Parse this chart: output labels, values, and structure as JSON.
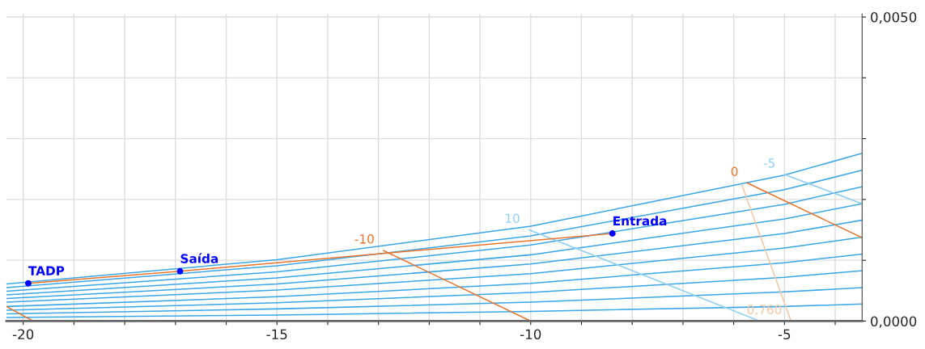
{
  "chart_data": {
    "type": "line",
    "xlim": [
      -20.33,
      -3.47
    ],
    "ylim": [
      0,
      0.00505
    ],
    "xticks": [
      {
        "value": -20,
        "label": "-20"
      },
      {
        "value": -19,
        "label": null
      },
      {
        "value": -18,
        "label": null
      },
      {
        "value": -17,
        "label": null
      },
      {
        "value": -16,
        "label": null
      },
      {
        "value": -15,
        "label": "-15"
      },
      {
        "value": -14,
        "label": null
      },
      {
        "value": -13,
        "label": null
      },
      {
        "value": -12,
        "label": null
      },
      {
        "value": -11,
        "label": null
      },
      {
        "value": -10,
        "label": "-10"
      },
      {
        "value": -9,
        "label": null
      },
      {
        "value": -8,
        "label": null
      },
      {
        "value": -7,
        "label": null
      },
      {
        "value": -6,
        "label": null
      },
      {
        "value": -5,
        "label": "-5"
      },
      {
        "value": -4,
        "label": null
      }
    ],
    "yticks": [
      {
        "value": 0,
        "label": "0,0000"
      },
      {
        "value": 0.001,
        "label": null
      },
      {
        "value": 0.002,
        "label": null
      },
      {
        "value": 0.003,
        "label": null
      },
      {
        "value": 0.004,
        "label": null
      },
      {
        "value": 0.005,
        "label": "0,0050"
      }
    ],
    "grid": true,
    "series": [
      {
        "color": "#3aa6e6",
        "x": [
          -20.33,
          -15,
          -10,
          -5,
          -3.47
        ],
        "values": [
          6e-05,
          0.0001,
          0.00016,
          0.00024,
          0.00028
        ]
      },
      {
        "color": "#3aa6e6",
        "x": [
          -20.33,
          -15,
          -10,
          -5,
          -3.47
        ],
        "values": [
          0.00012,
          0.0002,
          0.00031,
          0.00048,
          0.00055
        ]
      },
      {
        "color": "#3aa6e6",
        "x": [
          -20.33,
          -15,
          -10,
          -5,
          -3.47
        ],
        "values": [
          0.00018,
          0.0003,
          0.00047,
          0.00072,
          0.00083
        ]
      },
      {
        "color": "#3aa6e6",
        "x": [
          -20.33,
          -15,
          -10,
          -5,
          -3.47
        ],
        "values": [
          0.00024,
          0.0004,
          0.00062,
          0.00096,
          0.0011
        ]
      },
      {
        "color": "#3aa6e6",
        "x": [
          -20.33,
          -15,
          -10,
          -5,
          -3.47
        ],
        "values": [
          0.00031,
          0.00051,
          0.00078,
          0.0012,
          0.00138
        ]
      },
      {
        "color": "#3aa6e6",
        "x": [
          -20.33,
          -15,
          -10,
          -5,
          -3.47
        ],
        "values": [
          0.00037,
          0.00061,
          0.00094,
          0.00144,
          0.00166
        ]
      },
      {
        "color": "#3aa6e6",
        "x": [
          -20.33,
          -15,
          -10,
          -5,
          -3.47
        ],
        "values": [
          0.00043,
          0.00071,
          0.00109,
          0.00168,
          0.00193
        ]
      },
      {
        "color": "#3aa6e6",
        "x": [
          -20.33,
          -15,
          -10,
          -5,
          -3.47
        ],
        "values": [
          0.00049,
          0.00081,
          0.00125,
          0.00192,
          0.00221
        ]
      },
      {
        "color": "#3aa6e6",
        "x": [
          -20.33,
          -15,
          -10,
          -5,
          -3.47
        ],
        "values": [
          0.00055,
          0.00091,
          0.0014,
          0.00216,
          0.00248
        ]
      },
      {
        "color": "#3aa6e6",
        "x": [
          -20.33,
          -15,
          -10,
          -5,
          -3.47
        ],
        "values": [
          0.00061,
          0.00101,
          0.00156,
          0.0024,
          0.00276
        ]
      },
      {
        "color": "#e8742c",
        "x": [
          -20.33,
          -19.8
        ],
        "values": [
          0.00024,
          0
        ]
      },
      {
        "name": "-10",
        "color": "#e8742c",
        "x": [
          -12.9,
          -10
        ],
        "values": [
          0.00116,
          0
        ]
      },
      {
        "name": "0",
        "color": "#e8742c",
        "x": [
          -5.73,
          -3.47
        ],
        "values": [
          0.00227,
          0.00137
        ]
      },
      {
        "name": "10",
        "color": "#8fd0f0",
        "x": [
          -10.03,
          -5.49
        ],
        "values": [
          0.0015,
          0
        ]
      },
      {
        "name": "-5",
        "color": "#8fd0f0",
        "x": [
          -5,
          -3.47
        ],
        "values": [
          0.00241,
          0.00193
        ]
      },
      {
        "name": "0,760",
        "color": "#f5c6a5",
        "x": [
          -4.87,
          -5.84
        ],
        "values": [
          0,
          0.00224
        ]
      },
      {
        "color": "#e8742c",
        "x": [
          -8.39,
          -16.91,
          -19.9
        ],
        "values": [
          0.00144,
          0.00082,
          0.00062
        ]
      },
      {
        "name": "TADP",
        "type": "scatter",
        "color": "#0000ff",
        "marker": "circle",
        "x": [
          -19.9
        ],
        "values": [
          0.00062
        ]
      },
      {
        "name": "Saída",
        "type": "scatter",
        "color": "#0000ff",
        "marker": "circle",
        "x": [
          -16.91
        ],
        "values": [
          0.00082
        ]
      },
      {
        "name": "Entrada",
        "type": "scatter",
        "color": "#0000ff",
        "marker": "circle",
        "x": [
          -8.39
        ],
        "values": [
          0.00144
        ]
      }
    ]
  }
}
